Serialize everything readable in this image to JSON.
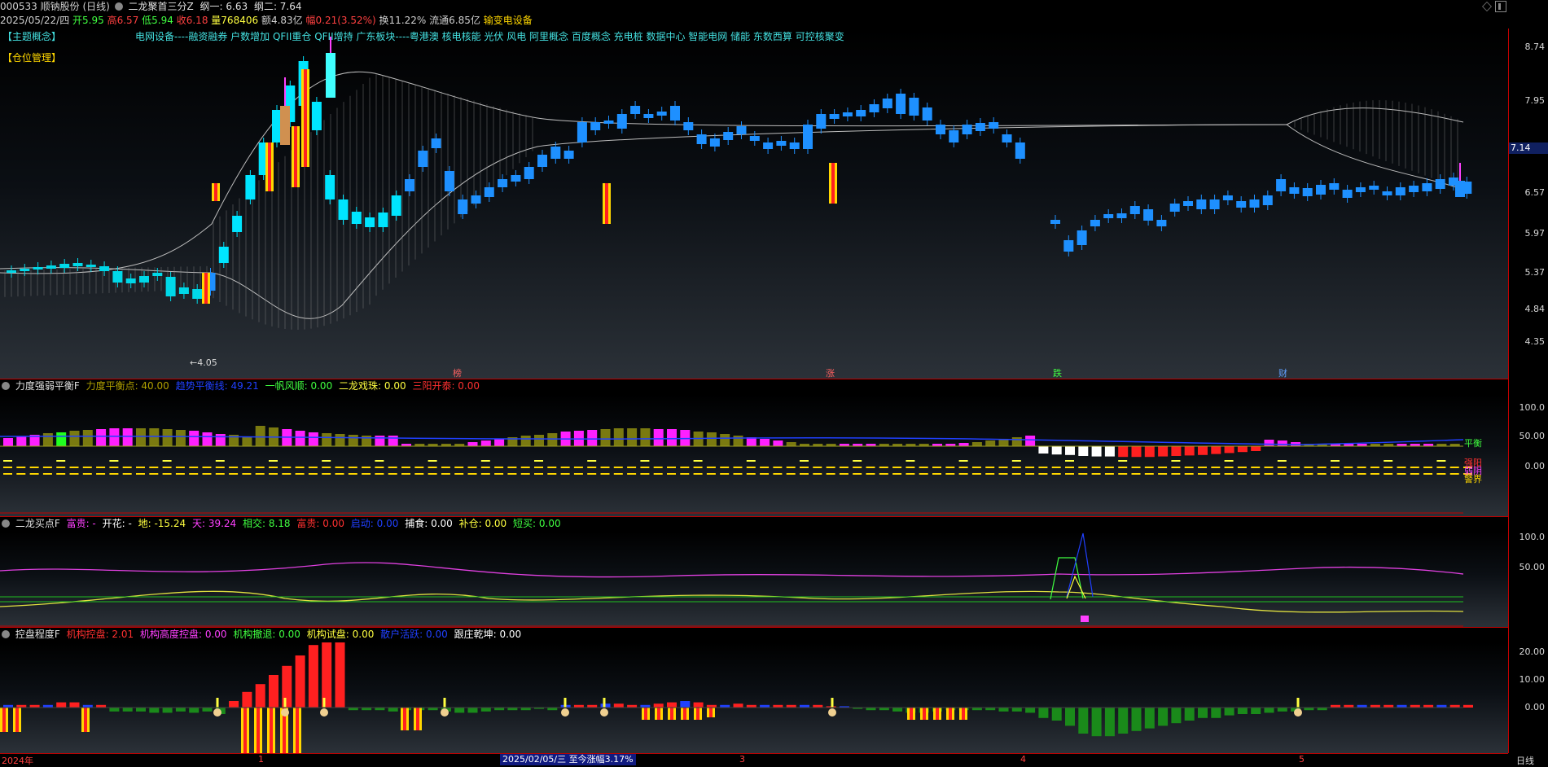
{
  "header": {
    "code_name": "000533 顺钠股份 (日线)",
    "formula": "二龙聚首三分Z",
    "line1_label": "纲一: 6.63",
    "line2_label": "纲二: 7.64"
  },
  "quote": {
    "date": "2025/05/22/四",
    "open_label": "开5.95",
    "high_label": "高6.57",
    "low_label": "低5.94",
    "close_label": "收6.18",
    "volume_label": "量768406",
    "amount_label": "额4.83亿",
    "change_label": "幅0.21(3.52%)",
    "turnover_label": "换11.22%",
    "float_label": "流通6.85亿",
    "sector": "输变电设备"
  },
  "concepts": {
    "tag_main": "【主题概念】",
    "tag_position": "【仓位管理】",
    "list": "电网设备----融资融券 户数增加 QFII重仓 QFII增持 广东板块----粤港澳 核电核能 光伏 风电 阿里概念 百度概念 充电桩 数据中心 智能电网 储能 东数西算 可控核聚变"
  },
  "main_chart": {
    "y_ticks": [
      "8.74",
      "7.95",
      "7.14",
      "6.57",
      "5.97",
      "5.37",
      "4.84",
      "4.35"
    ],
    "current_price_label": "7.14",
    "low_marker": "←4.05",
    "event_labels": [
      "榜",
      "涨",
      "跌",
      "财"
    ],
    "colors": {
      "up": "#00e5ff",
      "down": "#1e90ff",
      "limit_up": "#ff2020",
      "band": "#c8c8c8"
    }
  },
  "indicator1": {
    "name": "力度强弱平衡F",
    "items": [
      {
        "label": "力度平衡点: 40.00",
        "color": "#b0a000"
      },
      {
        "label": "趋势平衡线: 49.21",
        "color": "#2040ff"
      },
      {
        "label": "一帆风顺: 0.00",
        "color": "#40ff40"
      },
      {
        "label": "二龙戏珠: 0.00",
        "color": "#ffff40"
      },
      {
        "label": "三阳开泰: 0.00",
        "color": "#ff3030"
      }
    ],
    "y_ticks": [
      "100.0",
      "50.00",
      "0.00"
    ],
    "right_labels": [
      "平衡",
      "强阳",
      "弱阴",
      "警界"
    ]
  },
  "indicator2": {
    "name": "二龙买点F",
    "items": [
      {
        "label": "富贵: -",
        "color": "#ff40ff"
      },
      {
        "label": "开花: -",
        "color": "#ffffff"
      },
      {
        "label": "地: -15.24",
        "color": "#ffff40"
      },
      {
        "label": "天: 39.24",
        "color": "#ff40ff"
      },
      {
        "label": "相交: 8.18",
        "color": "#40ff40"
      },
      {
        "label": "富贵: 0.00",
        "color": "#ff3030"
      },
      {
        "label": "启动: 0.00",
        "color": "#2040ff"
      },
      {
        "label": "捕食: 0.00",
        "color": "#ffffff"
      },
      {
        "label": "补仓: 0.00",
        "color": "#ffff40"
      },
      {
        "label": "短买: 0.00",
        "color": "#40ff40"
      }
    ],
    "y_ticks": [
      "100.0",
      "50.00"
    ]
  },
  "indicator3": {
    "name": "控盘程度F",
    "items": [
      {
        "label": "机构控盘: 2.01",
        "color": "#ff3030"
      },
      {
        "label": "机构高度控盘: 0.00",
        "color": "#ff40ff"
      },
      {
        "label": "机构撤退: 0.00",
        "color": "#40ff40"
      },
      {
        "label": "机构试盘: 0.00",
        "color": "#ffff40"
      },
      {
        "label": "散户活跃: 0.00",
        "color": "#2040ff"
      },
      {
        "label": "跟庄乾坤: 0.00",
        "color": "#ffffff"
      }
    ],
    "y_ticks": [
      "20.00",
      "10.00",
      "0.00"
    ]
  },
  "x_axis": {
    "labels": [
      "2024年",
      "1",
      "3",
      "4",
      "5"
    ],
    "info": "2025/02/05/三 至今涨幅3.17%",
    "period": "日线"
  }
}
